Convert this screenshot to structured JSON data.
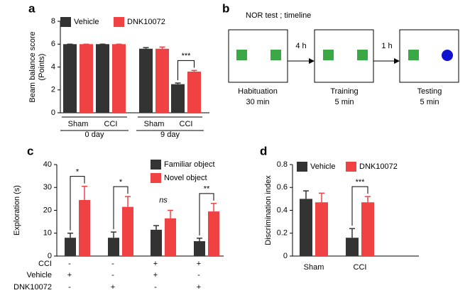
{
  "chart_data": [
    {
      "type": "bar",
      "panel": "a",
      "ylabel": [
        "Beam balance score",
        "(Points)"
      ],
      "categories": [
        "Sham",
        "CCI",
        "Sham",
        "CCI"
      ],
      "groups": [
        "0 day",
        "9 day"
      ],
      "series": [
        {
          "name": "Vehicle",
          "color": "#333333",
          "values": [
            6,
            6,
            5.6,
            2.5
          ],
          "errors": [
            0,
            0,
            0.1,
            0.1
          ]
        },
        {
          "name": "DNK10072",
          "color": "#f04242",
          "values": [
            6,
            6,
            5.6,
            3.6
          ],
          "errors": [
            0,
            0,
            0.15,
            0.1
          ]
        }
      ],
      "significance": [
        null,
        null,
        null,
        "***"
      ],
      "ylim": [
        0,
        8
      ],
      "yticks": [
        0,
        2,
        4,
        6,
        8
      ]
    },
    {
      "type": "bar",
      "panel": "c",
      "ylabel": [
        "Exploration (s)"
      ],
      "categories": [
        null,
        null,
        null,
        null
      ],
      "series": [
        {
          "name": "Familiar object",
          "color": "#333333",
          "values": [
            8,
            8,
            11.5,
            6.5
          ],
          "errors": [
            2,
            2.5,
            1.8,
            1.3
          ]
        },
        {
          "name": "Novel object",
          "color": "#f04242",
          "values": [
            24.5,
            21.5,
            16.5,
            19.5
          ],
          "errors": [
            6,
            4.5,
            3.5,
            3.5
          ]
        }
      ],
      "significance": [
        "*",
        "*",
        "ns",
        "**"
      ],
      "conditions": [
        {
          "name": "CCI",
          "values": [
            "-",
            "-",
            "+",
            "+"
          ]
        },
        {
          "name": "Vehicle",
          "values": [
            "+",
            "-",
            "+",
            "-"
          ]
        },
        {
          "name": "DNK10072",
          "values": [
            "-",
            "+",
            "-",
            "+"
          ]
        }
      ],
      "ylim": [
        0,
        40
      ],
      "yticks": [
        0,
        10,
        20,
        30,
        40
      ]
    },
    {
      "type": "bar",
      "panel": "d",
      "ylabel": [
        "Discrimination index"
      ],
      "categories": [
        "Sham",
        "CCI"
      ],
      "series": [
        {
          "name": "Vehicle",
          "color": "#333333",
          "values": [
            0.5,
            0.16
          ],
          "errors": [
            0.07,
            0.08
          ]
        },
        {
          "name": "DNK10072",
          "color": "#f04242",
          "values": [
            0.47,
            0.47
          ],
          "errors": [
            0.08,
            0.05
          ]
        }
      ],
      "significance": [
        null,
        "***"
      ],
      "ylim": [
        0,
        0.8
      ],
      "yticks": [
        0,
        0.2,
        0.4,
        0.6,
        0.8
      ]
    }
  ],
  "diagram": {
    "panel": "b",
    "title": "NOR test ; timeline",
    "steps": [
      {
        "name": "Habituation",
        "duration": "30 min"
      },
      {
        "name": "Training",
        "duration": "5 min"
      },
      {
        "name": "Testing",
        "duration": "5 min"
      }
    ],
    "intervals": [
      "4 h",
      "1 h"
    ]
  }
}
